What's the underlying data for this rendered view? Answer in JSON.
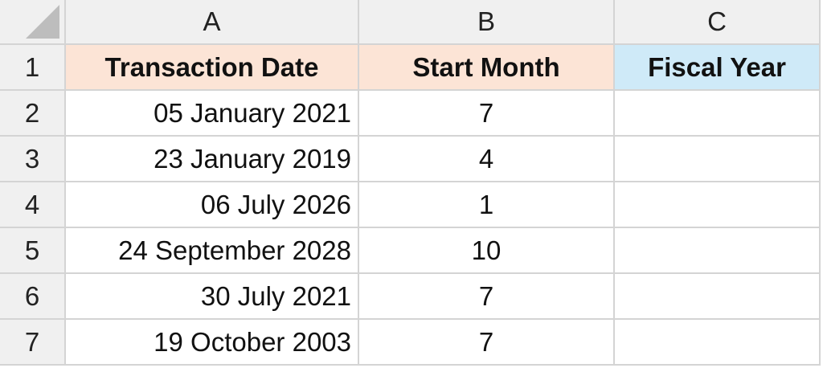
{
  "columns": [
    "A",
    "B",
    "C"
  ],
  "row_numbers": [
    "1",
    "2",
    "3",
    "4",
    "5",
    "6",
    "7"
  ],
  "headers": {
    "a": "Transaction Date",
    "b": "Start Month",
    "c": "Fiscal Year"
  },
  "rows": [
    {
      "date": "05 January 2021",
      "start_month": "7",
      "fiscal_year": ""
    },
    {
      "date": "23 January 2019",
      "start_month": "4",
      "fiscal_year": ""
    },
    {
      "date": "06 July 2026",
      "start_month": "1",
      "fiscal_year": ""
    },
    {
      "date": "24 September 2028",
      "start_month": "10",
      "fiscal_year": ""
    },
    {
      "date": "30 July 2021",
      "start_month": "7",
      "fiscal_year": ""
    },
    {
      "date": "19 October 2003",
      "start_month": "7",
      "fiscal_year": ""
    }
  ],
  "colors": {
    "header_a_b_fill": "#fce4d6",
    "header_c_fill": "#cfeaf8",
    "heading_bg": "#f0f0f0",
    "gridline": "#d4d4d4"
  }
}
